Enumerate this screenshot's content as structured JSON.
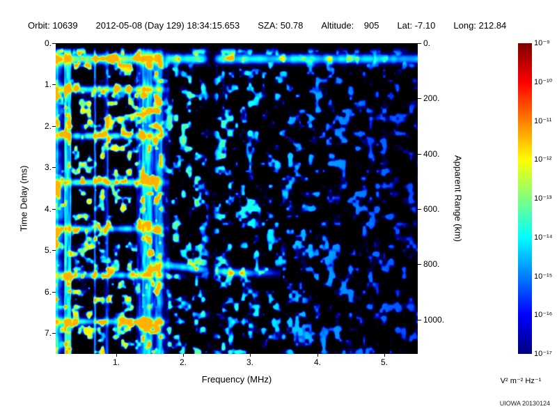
{
  "header": {
    "fields": [
      "Orbit: 10639",
      "2012-05-08 (Day 129) 18:34:15.653",
      "SZA: 50.78",
      "Altitude:    905",
      "Lat: -7.10",
      "Long: 212.84"
    ]
  },
  "watermark": "UIOWA 20130124",
  "chart_data": {
    "type": "heatmap",
    "description": "Radar sounder ionogram spectrogram (received spectral density vs frequency and time delay) on black background with jet colormap",
    "title": "",
    "xlabel": "Frequency (MHz)",
    "ylabel_left": "Time Delay (ms)",
    "ylabel_right": "Apparent Range (km)",
    "x_range_mhz": [
      0.1,
      5.5
    ],
    "y_range_ms": [
      0,
      7.5
    ],
    "x_ticks": [
      1,
      2,
      3,
      4,
      5
    ],
    "x_tick_labels": [
      "1.",
      "2.",
      "3.",
      "4.",
      "5."
    ],
    "y_ticks_left_ms": [
      0,
      1,
      2,
      3,
      4,
      5,
      6,
      7
    ],
    "y_tick_labels_left": [
      "0.",
      "1.",
      "2.",
      "3.",
      "4.",
      "5.",
      "6.",
      "7."
    ],
    "y_ticks_right_km": [
      0,
      200,
      400,
      600,
      800,
      1000
    ],
    "y_tick_labels_right": [
      "0.",
      "200.",
      "400.",
      "600.",
      "800.",
      "1000."
    ],
    "colorbar": {
      "units": "V² m⁻² Hz⁻¹",
      "scale": "log10",
      "max": "1e-9",
      "min": "1e-17",
      "colormap": "jet",
      "tick_labels": [
        "10⁻⁹",
        "10⁻¹⁰",
        "10⁻¹¹",
        "10⁻¹²",
        "10⁻¹³",
        "10⁻¹⁴",
        "10⁻¹⁵",
        "10⁻¹⁶",
        "10⁻¹⁷"
      ]
    },
    "features": {
      "background": "#000000",
      "surface_echo_delay_ms": 0.38,
      "cyclotron_line_spacing_ms": 1.12,
      "cyclotron_line_count": 6,
      "dense_noise_max_freq_mhz": 1.68,
      "boundary_gap_freq_mhz": 1.73,
      "absorption_gap_freq_mhz": 2.42,
      "ionosphere_echo_delay_ms": 5.45,
      "ionosphere_echo_freq_range_mhz": [
        1.5,
        3.45
      ],
      "km_per_ms_apparent_range": 149.896
    }
  }
}
